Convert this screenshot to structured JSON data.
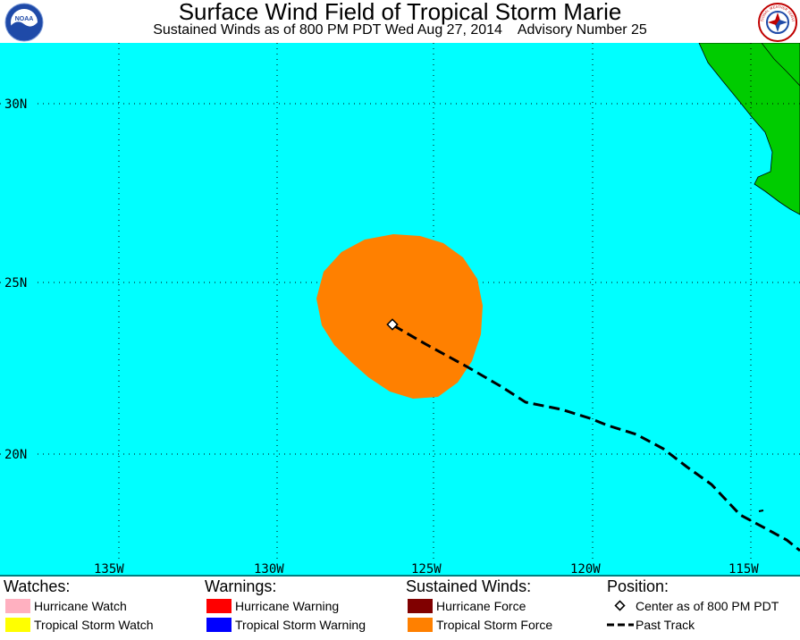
{
  "header": {
    "title": "Surface Wind Field of Tropical Storm Marie",
    "subtitle": "Sustained Winds as of 800 PM PDT Wed Aug 27, 2014    Advisory Number 25",
    "left_logo_text": "NOAA",
    "right_logo_text": "NATIONAL WEATHER SERVICE"
  },
  "map": {
    "ocean_color": "#00ffff",
    "land_color": "#00cc00",
    "wind_field_color": "#ff8000",
    "lat_labels": [
      "30N",
      "25N",
      "20N"
    ],
    "lon_labels": [
      "135W",
      "130W",
      "125W",
      "120W",
      "115W"
    ],
    "storm_center_label": "Center as of 800 PM PDT"
  },
  "legend": {
    "watches": {
      "heading": "Watches:",
      "items": [
        {
          "label": "Hurricane Watch",
          "color": "#ffb0c0"
        },
        {
          "label": "Tropical Storm Watch",
          "color": "#ffff00"
        }
      ]
    },
    "warnings": {
      "heading": "Warnings:",
      "items": [
        {
          "label": "Hurricane Warning",
          "color": "#ff0000"
        },
        {
          "label": "Tropical Storm Warning",
          "color": "#0000ff"
        }
      ]
    },
    "winds": {
      "heading": "Sustained Winds:",
      "items": [
        {
          "label": "Hurricane Force",
          "color": "#800000"
        },
        {
          "label": "Tropical Storm Force",
          "color": "#ff8000"
        }
      ]
    },
    "position": {
      "heading": "Position:",
      "items": [
        {
          "label": "Center as of 800 PM PDT",
          "icon": "diamond-icon"
        },
        {
          "label": "Past Track",
          "icon": "dashed-line-icon"
        }
      ]
    }
  }
}
